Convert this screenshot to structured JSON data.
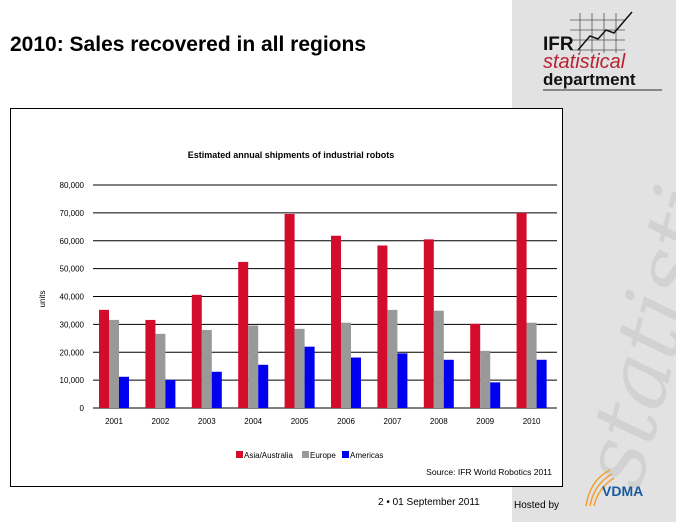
{
  "slide": {
    "title": "2010: Sales recovered in all regions",
    "footer": "2 • 01 September 2011",
    "hosted_by": "Hosted by",
    "watermark": "statistical"
  },
  "logo": {
    "line1": "IFR",
    "line2": "statistical",
    "line3": "department",
    "vdma": "VDMA"
  },
  "colors": {
    "asia": "#d40c2c",
    "europe": "#999999",
    "americas": "#0000ee",
    "panel": "#e2e2e2"
  },
  "chart_data": {
    "type": "bar",
    "title": "Estimated annual shipments of industrial robots",
    "xlabel": "",
    "ylabel": "units",
    "ylim": [
      0,
      80000
    ],
    "yticks": [
      "0",
      "10,000",
      "20,000",
      "30,000",
      "40,000",
      "50,000",
      "60,000",
      "70,000",
      "80,000"
    ],
    "grid": true,
    "legend": "bottom",
    "source": "Source: IFR World Robotics 2011",
    "categories": [
      "2001",
      "2002",
      "2003",
      "2004",
      "2005",
      "2006",
      "2007",
      "2008",
      "2009",
      "2010"
    ],
    "series": [
      {
        "name": "Asia/Australia",
        "values": [
          35200,
          31600,
          40600,
          52400,
          69600,
          61800,
          58300,
          60500,
          30200,
          70000
        ]
      },
      {
        "name": "Europe",
        "values": [
          31600,
          26600,
          28000,
          29600,
          28400,
          30600,
          35200,
          34900,
          20500,
          30600
        ]
      },
      {
        "name": "Americas",
        "values": [
          11200,
          10100,
          13000,
          15500,
          22000,
          18100,
          19600,
          17300,
          9200,
          17300
        ]
      }
    ]
  }
}
